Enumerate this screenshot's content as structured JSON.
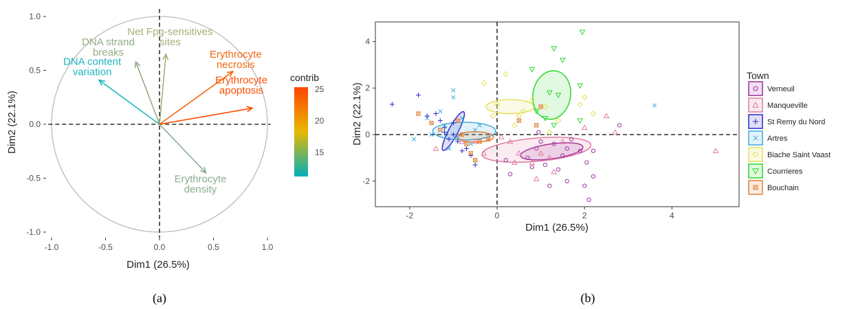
{
  "panel_a": {
    "caption": "(a)",
    "xlabel": "Dim1 (26.5%)",
    "ylabel": "Dim2 (22.1%)",
    "x_ticks": [
      "-1.0",
      "-0.5",
      "0.0",
      "0.5",
      "1.0"
    ],
    "y_ticks": [
      "-1.0",
      "-0.5",
      "0.0",
      "0.5",
      "1.0"
    ],
    "colorbar_title": "contrib",
    "colorbar_ticks": [
      "25",
      "20",
      "15"
    ],
    "colorbar_colors": [
      "#ff4500",
      "#e7b800",
      "#00afbb"
    ]
  },
  "panel_b": {
    "caption": "(b)",
    "xlabel": "Dim1 (26.5%)",
    "ylabel": "Dim2 (22.1%)",
    "x_ticks": [
      "-2",
      "0",
      "2",
      "4"
    ],
    "y_ticks": [
      "4",
      "2",
      "0",
      "-2"
    ],
    "legend_title": "Town"
  },
  "chart_data": [
    {
      "type": "scatter",
      "subtype": "variable-correlation-circle",
      "xlabel": "Dim1 (26.5%)",
      "ylabel": "Dim2 (22.1%)",
      "xlim": [
        -1.1,
        1.1
      ],
      "ylim": [
        -1.05,
        1.05
      ],
      "color_by": "contrib",
      "color_range": [
        11,
        25
      ],
      "vectors": [
        {
          "label": [
            "Net Fpg-sensitives",
            "sites"
          ],
          "x": 0.06,
          "y": 0.65,
          "contrib": 15,
          "color": "#a3b07a"
        },
        {
          "label": [
            "DNA strand",
            "breaks"
          ],
          "x": -0.22,
          "y": 0.58,
          "contrib": 14,
          "color": "#93ad85"
        },
        {
          "label": [
            "DNA content",
            "variation"
          ],
          "x": -0.56,
          "y": 0.41,
          "contrib": 11,
          "color": "#1db5c0"
        },
        {
          "label": [
            "Erythrocyte",
            "necrosis"
          ],
          "x": 0.68,
          "y": 0.49,
          "contrib": 24,
          "color": "#f3660f"
        },
        {
          "label": [
            "Erythrocyte",
            "apoptosis"
          ],
          "x": 0.86,
          "y": 0.15,
          "contrib": 25,
          "color": "#ff4d00"
        },
        {
          "label": [
            "Erythrocyte",
            "density"
          ],
          "x": 0.43,
          "y": -0.45,
          "contrib": 14,
          "color": "#86ae8f"
        }
      ]
    },
    {
      "type": "scatter",
      "subtype": "individuals-by-group",
      "xlabel": "Dim1 (26.5%)",
      "ylabel": "Dim2 (22.1%)",
      "xlim": [
        -2.9,
        5.3
      ],
      "ylim": [
        -3.1,
        4.6
      ],
      "series": [
        {
          "name": "Verneuil",
          "color": "#9c2f9e",
          "shape": "circle",
          "ellipse": {
            "cx": 1.25,
            "cy": -0.72,
            "rx": 0.72,
            "ry": 0.32,
            "angle": -8
          },
          "points": [
            [
              0.7,
              -1.0
            ],
            [
              0.9,
              -0.6
            ],
            [
              1.1,
              -1.3
            ],
            [
              1.3,
              -0.4
            ],
            [
              1.5,
              -0.9
            ],
            [
              1.7,
              -0.2
            ],
            [
              1.0,
              -0.3
            ],
            [
              0.8,
              -1.4
            ],
            [
              1.4,
              -1.5
            ],
            [
              1.9,
              -0.7
            ],
            [
              2.0,
              -2.2
            ],
            [
              2.1,
              -2.8
            ],
            [
              2.2,
              -0.7
            ],
            [
              1.6,
              -2.0
            ],
            [
              1.2,
              -2.2
            ],
            [
              0.2,
              -1.1
            ],
            [
              0.3,
              -1.7
            ],
            [
              2.8,
              0.4
            ],
            [
              0.95,
              0.1
            ],
            [
              1.6,
              -0.6
            ],
            [
              2.05,
              -1.2
            ],
            [
              2.2,
              -1.8
            ]
          ]
        },
        {
          "name": "Manqueville",
          "color": "#e07aa0",
          "shape": "triangle",
          "ellipse": {
            "cx": 0.9,
            "cy": -0.65,
            "rx": 1.25,
            "ry": 0.5,
            "angle": -5
          },
          "points": [
            [
              5.0,
              -0.7
            ],
            [
              2.5,
              0.8
            ],
            [
              1.0,
              -0.8
            ],
            [
              0.3,
              -0.3
            ],
            [
              0.8,
              -1.2
            ],
            [
              1.5,
              -0.3
            ],
            [
              -0.5,
              -0.3
            ],
            [
              -1.4,
              -0.6
            ],
            [
              -0.3,
              -0.8
            ],
            [
              0.5,
              -0.8
            ],
            [
              1.2,
              -1.0
            ],
            [
              0.1,
              -0.1
            ],
            [
              2.7,
              0.1
            ],
            [
              -0.8,
              -0.3
            ],
            [
              0.9,
              -1.9
            ],
            [
              1.3,
              -1.6
            ],
            [
              2.0,
              0.3
            ],
            [
              0.4,
              -1.2
            ]
          ]
        },
        {
          "name": "St Remy du Nord",
          "color": "#2929c9",
          "shape": "plus",
          "ellipse": {
            "cx": -1.0,
            "cy": 0.15,
            "rx": 0.5,
            "ry": 0.2,
            "angle": -62
          },
          "points": [
            [
              -2.4,
              1.3
            ],
            [
              -1.8,
              1.7
            ],
            [
              -1.6,
              0.8
            ],
            [
              -1.3,
              0.6
            ],
            [
              -1.0,
              0.5
            ],
            [
              -1.2,
              0.1
            ],
            [
              -1.1,
              -0.2
            ],
            [
              -0.9,
              -0.3
            ],
            [
              -0.7,
              -0.6
            ],
            [
              -0.6,
              -0.9
            ],
            [
              -0.8,
              -0.7
            ],
            [
              -1.0,
              0.0
            ],
            [
              -0.5,
              -1.3
            ],
            [
              -1.4,
              0.9
            ],
            [
              -1.2,
              0.3
            ]
          ]
        },
        {
          "name": "Artres",
          "color": "#3fa9da",
          "shape": "x",
          "ellipse": {
            "cx": -0.75,
            "cy": 0.15,
            "rx": 0.72,
            "ry": 0.38,
            "angle": 0
          },
          "points": [
            [
              3.6,
              1.25
            ],
            [
              -1.0,
              1.6
            ],
            [
              -1.3,
              1.0
            ],
            [
              -0.8,
              0.7
            ],
            [
              -1.5,
              0.0
            ],
            [
              -0.4,
              0.4
            ],
            [
              -0.9,
              -0.1
            ],
            [
              -1.2,
              0.4
            ],
            [
              -0.6,
              -0.4
            ],
            [
              -1.1,
              -0.6
            ],
            [
              -1.9,
              -0.2
            ],
            [
              -1.0,
              1.9
            ],
            [
              -0.5,
              0.2
            ],
            [
              -0.2,
              -0.2
            ],
            [
              -1.6,
              0.7
            ]
          ]
        },
        {
          "name": "Biache Saint Vaast",
          "color": "#e5e05a",
          "shape": "diamond",
          "ellipse": {
            "cx": 0.3,
            "cy": 1.2,
            "rx": 0.55,
            "ry": 0.3,
            "angle": 0
          },
          "points": [
            [
              0.2,
              2.6
            ],
            [
              -0.3,
              2.2
            ],
            [
              0.8,
              1.5
            ],
            [
              1.1,
              1.2
            ],
            [
              0.5,
              0.8
            ],
            [
              -0.1,
              0.8
            ],
            [
              0.4,
              0.4
            ],
            [
              1.4,
              0.6
            ],
            [
              2.0,
              1.6
            ],
            [
              0.6,
              1.0
            ],
            [
              1.2,
              0.1
            ],
            [
              0.0,
              1.3
            ],
            [
              2.2,
              0.9
            ],
            [
              1.9,
              1.3
            ]
          ]
        },
        {
          "name": "Courrieres",
          "color": "#2fd62f",
          "shape": "triangle-down",
          "ellipse": {
            "cx": 1.25,
            "cy": 1.7,
            "rx": 0.43,
            "ry": 1.05,
            "angle": 10
          },
          "points": [
            [
              1.95,
              4.4
            ],
            [
              1.3,
              3.7
            ],
            [
              0.8,
              2.8
            ],
            [
              1.5,
              3.2
            ],
            [
              1.2,
              1.8
            ],
            [
              0.9,
              1.0
            ],
            [
              1.1,
              0.7
            ],
            [
              1.3,
              0.4
            ],
            [
              1.4,
              1.7
            ],
            [
              1.9,
              2.1
            ],
            [
              1.9,
              0.6
            ]
          ]
        },
        {
          "name": "Bouchain",
          "color": "#e0803a",
          "shape": "square",
          "ellipse": {
            "cx": -0.5,
            "cy": -0.1,
            "rx": 0.42,
            "ry": 0.22,
            "angle": 0
          },
          "points": [
            [
              -1.8,
              0.9
            ],
            [
              -0.9,
              0.6
            ],
            [
              -0.7,
              -0.4
            ],
            [
              -0.6,
              -0.8
            ],
            [
              -0.5,
              -1.1
            ],
            [
              -0.8,
              0.0
            ],
            [
              -1.3,
              0.2
            ],
            [
              -0.4,
              -0.3
            ],
            [
              0.5,
              0.6
            ],
            [
              0.9,
              0.4
            ],
            [
              1.0,
              1.2
            ],
            [
              -1.5,
              0.5
            ],
            [
              -0.2,
              -0.2
            ]
          ]
        }
      ]
    }
  ]
}
